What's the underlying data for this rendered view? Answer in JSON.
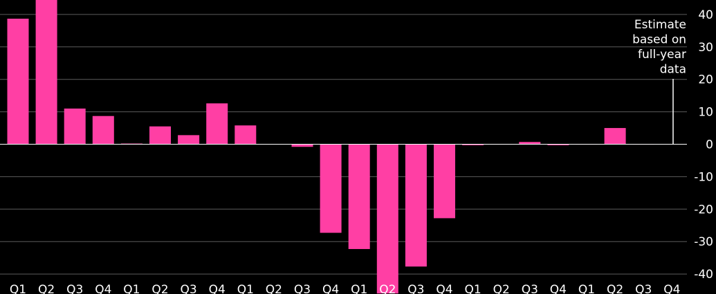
{
  "chart_data": {
    "type": "bar",
    "categories": [
      "Q1",
      "Q2",
      "Q3",
      "Q4",
      "Q1",
      "Q2",
      "Q3",
      "Q4",
      "Q1",
      "Q2",
      "Q3",
      "Q4",
      "Q1",
      "Q2",
      "Q3",
      "Q4",
      "Q1",
      "Q2",
      "Q3",
      "Q4",
      "Q1",
      "Q2",
      "Q3",
      "Q4"
    ],
    "values": [
      38.7,
      45,
      11,
      8.7,
      0.2,
      5.5,
      2.8,
      12.6,
      5.8,
      0,
      -0.8,
      -27.3,
      -32.3,
      -46,
      -37.7,
      -22.8,
      -0.3,
      0.1,
      0.7,
      -0.3,
      0.1,
      5,
      0.1,
      0
    ],
    "title": "",
    "xlabel": "",
    "ylabel": "",
    "ylim": [
      -46,
      45
    ],
    "yticks": [
      40,
      30,
      20,
      10,
      0,
      -10,
      -20,
      -30,
      -40
    ],
    "bar_color": "#ff3fa4",
    "background": "#000000",
    "grid": true,
    "annotation": {
      "lines": [
        "Estimate",
        "based on",
        "full-year",
        "data"
      ],
      "category_index": 23
    }
  }
}
